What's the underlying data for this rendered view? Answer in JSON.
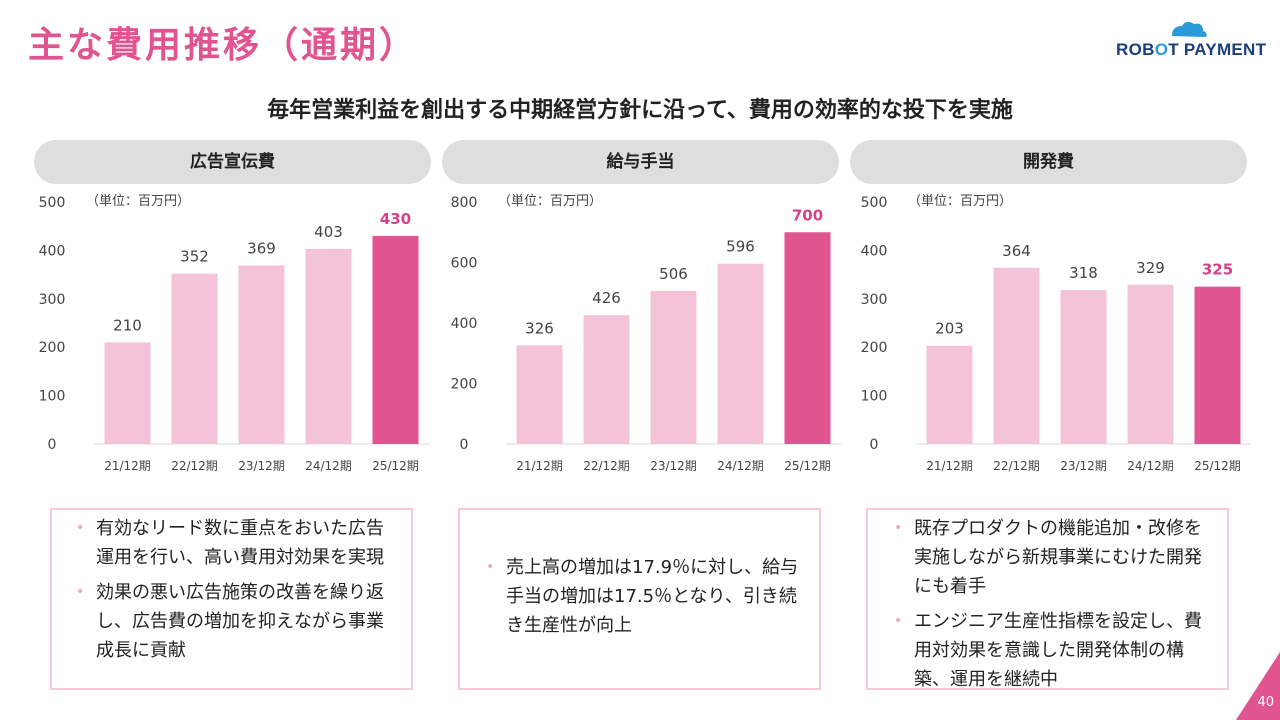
{
  "title": "主な費用推移（通期）",
  "logo": {
    "part1": "ROB",
    "part2": "O",
    "part3": "T PAYMENT"
  },
  "subtitle": "毎年営業利益を創出する中期経営方針に沿って、費用の効率的な投下を実施",
  "colors": {
    "accent": "#e0548f",
    "bar": "#f5c3d8",
    "highlight_label": "#d6428a"
  },
  "chart_data": [
    {
      "type": "bar",
      "title": "広告宣伝費",
      "unit_label": "（単位：百万円）",
      "categories": [
        "21/12期",
        "22/12期",
        "23/12期",
        "24/12期",
        "25/12期"
      ],
      "values": [
        210,
        352,
        369,
        403,
        430
      ],
      "ylim": [
        0,
        500
      ],
      "yticks": [
        0,
        100,
        200,
        300,
        400,
        500
      ],
      "highlight_index": 4
    },
    {
      "type": "bar",
      "title": "給与手当",
      "unit_label": "（単位：百万円）",
      "categories": [
        "21/12期",
        "22/12期",
        "23/12期",
        "24/12期",
        "25/12期"
      ],
      "values": [
        326,
        426,
        506,
        596,
        700
      ],
      "ylim": [
        0,
        800
      ],
      "yticks": [
        0,
        200,
        400,
        600,
        800
      ],
      "highlight_index": 4
    },
    {
      "type": "bar",
      "title": "開発費",
      "unit_label": "（単位：百万円）",
      "categories": [
        "21/12期",
        "22/12期",
        "23/12期",
        "24/12期",
        "25/12期"
      ],
      "values": [
        203,
        364,
        318,
        329,
        325
      ],
      "ylim": [
        0,
        500
      ],
      "yticks": [
        0,
        100,
        200,
        300,
        400,
        500
      ],
      "highlight_index": 4
    }
  ],
  "notes": [
    {
      "bullets": [
        "有効なリード数に重点をおいた広告運用を行い、高い費用対効果を実現",
        "効果の悪い広告施策の改善を繰り返し、広告費の増加を抑えながら事業成長に貢献"
      ]
    },
    {
      "bullets": [
        "売上高の増加は17.9％に対し、給与手当の増加は17.5％となり、引き続き生産性が向上"
      ]
    },
    {
      "bullets": [
        "既存プロダクトの機能追加・改修を実施しながら新規事業にむけた開発にも着手",
        "エンジニア生産性指標を設定し、費用対効果を意識した開発体制の構築、運用を継続中"
      ]
    }
  ],
  "page_number": "40"
}
